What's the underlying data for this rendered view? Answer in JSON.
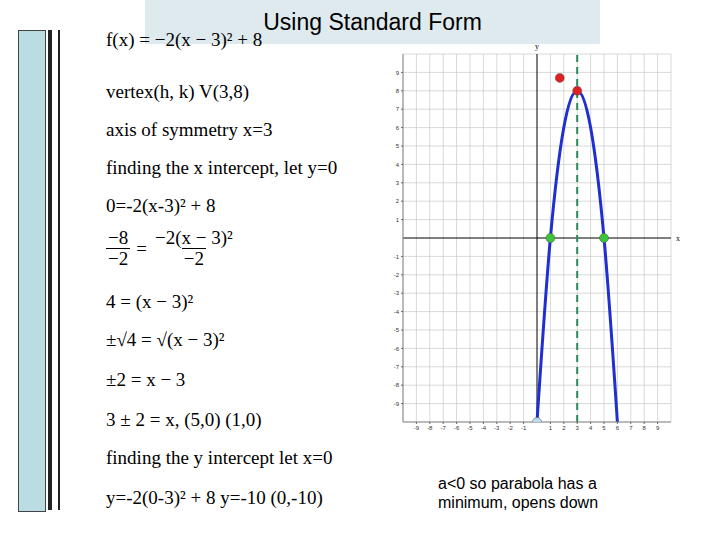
{
  "header": {
    "title": "Using Standard Form"
  },
  "work": {
    "lines": [
      "f(x) = −2(x − 3)² + 8",
      "vertex(h, k)   V(3,8)",
      "axis of  symmetry x=3",
      "finding the x intercept, let y=0",
      "0=-2(x-3)² + 8",
      {
        "numerators": [
          "−8",
          "−2(x − 3)²"
        ],
        "denominators": [
          "−2",
          "−2"
        ],
        "relation": "="
      },
      "4 = (x − 3)²",
      "±√4 = √(x − 3)²",
      "±2 = x − 3",
      "3 ± 2 = x,  (5,0) (1,0)",
      "finding the y intercept let x=0",
      "y=-2(0-3)² + 8     y=-10  (0,-10)"
    ]
  },
  "caption": "a<0 so parabola has a minimum, opens down",
  "chart_data": {
    "type": "line",
    "x": [
      0,
      1,
      2,
      3,
      4,
      5,
      6
    ],
    "values": [
      -10,
      0,
      6,
      8,
      6,
      0,
      -10
    ],
    "color": "#1f2fd0",
    "xlim": [
      -10,
      10
    ],
    "ylim": [
      -10,
      10
    ],
    "xticks": [
      -9,
      -8,
      -7,
      -6,
      -5,
      -4,
      -3,
      -2,
      -1,
      1,
      2,
      3,
      4,
      5,
      6,
      7,
      8,
      9
    ],
    "yticks": [
      -9,
      -8,
      -7,
      -6,
      -5,
      -4,
      -3,
      -2,
      -1,
      1,
      2,
      3,
      4,
      5,
      6,
      7,
      8,
      9
    ],
    "grid": true,
    "xlabel": "x",
    "ylabel": "y",
    "axis_of_symmetry": {
      "x": 3,
      "color": "#2a8a5a",
      "line_style": "dashed"
    },
    "points": {
      "x": [
        1.7,
        3,
        1,
        5,
        0
      ],
      "y": [
        8.7,
        8,
        0,
        0,
        -10
      ],
      "colors": [
        "#e02020",
        "#e02020",
        "#3cc43c",
        "#3cc43c",
        "#b8dcea"
      ]
    }
  }
}
